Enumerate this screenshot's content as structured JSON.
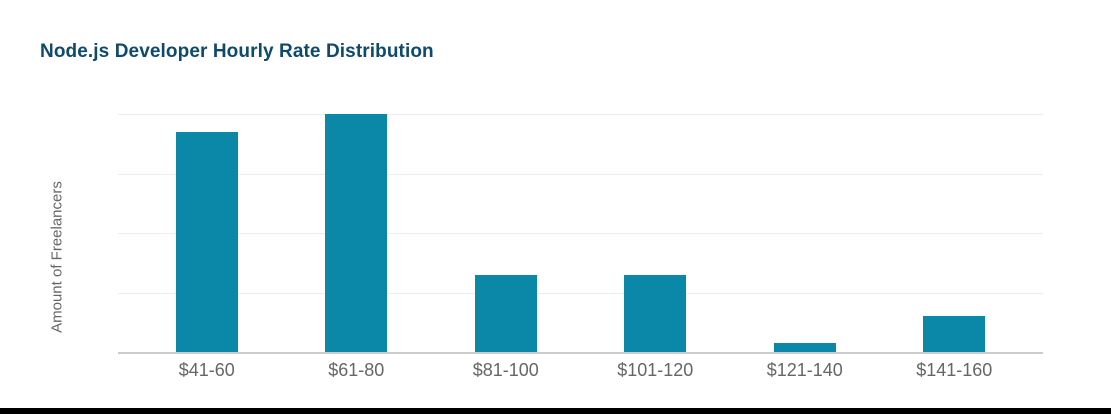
{
  "page": {
    "background": "#ffffff",
    "title_color": "#0e4a6b",
    "bottom_bar_color": "#000000"
  },
  "chart_data": {
    "type": "bar",
    "title": "Node.js Developer Hourly Rate Distribution",
    "categories": [
      "$41-60",
      "$61-80",
      "$81-100",
      "$101-120",
      "$121-140",
      "$141-160"
    ],
    "values": [
      74,
      80,
      26,
      26,
      3,
      12
    ],
    "xlabel": "",
    "ylabel": "Amount of Freelancers",
    "ylim": [
      0,
      80
    ],
    "y_tick_labels_visible": false,
    "grid": "horizontal",
    "gridline_interval": 20,
    "legend": "none",
    "bar_color": "#0b87a8",
    "gridline_color": "#ececec",
    "axis_line_color": "#cccccc",
    "tick_label_color": "#666666"
  }
}
